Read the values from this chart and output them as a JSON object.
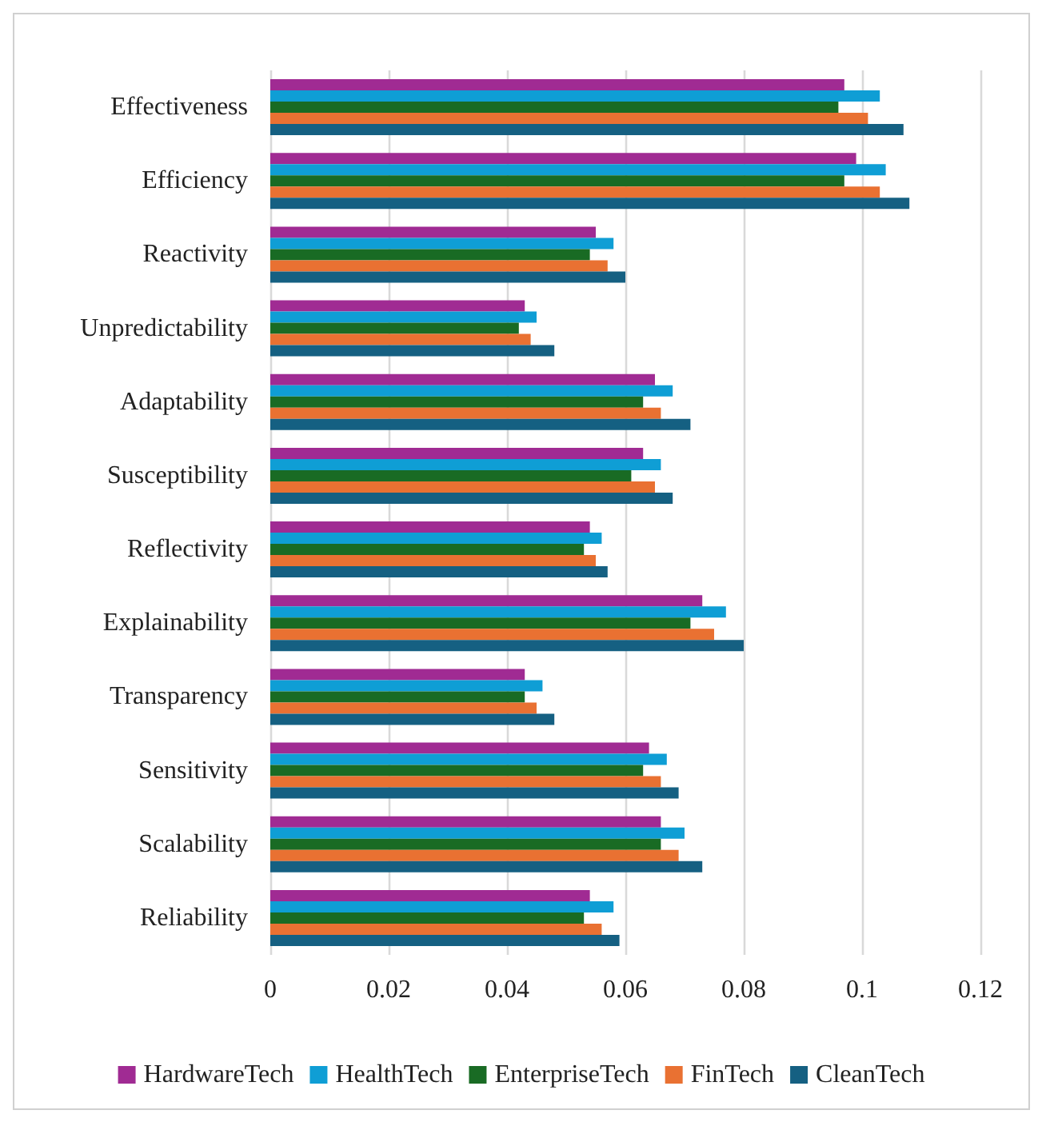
{
  "chart_data": {
    "type": "bar",
    "orientation": "horizontal",
    "categories": [
      "Effectiveness",
      "Efficiency",
      "Reactivity",
      "Unpredictability",
      "Adaptability",
      "Susceptibility",
      "Reflectivity",
      "Explainability",
      "Transparency",
      "Sensitivity",
      "Scalability",
      "Reliability"
    ],
    "series": [
      {
        "name": "HardwareTech",
        "color": "#a02b93",
        "values": [
          0.097,
          0.099,
          0.055,
          0.043,
          0.065,
          0.063,
          0.054,
          0.073,
          0.043,
          0.064,
          0.066,
          0.054
        ]
      },
      {
        "name": "HealthTech",
        "color": "#0f9ed5",
        "values": [
          0.103,
          0.104,
          0.058,
          0.045,
          0.068,
          0.066,
          0.056,
          0.077,
          0.046,
          0.067,
          0.07,
          0.058
        ]
      },
      {
        "name": "EnterpriseTech",
        "color": "#196b24",
        "values": [
          0.096,
          0.097,
          0.054,
          0.042,
          0.063,
          0.061,
          0.053,
          0.071,
          0.043,
          0.063,
          0.066,
          0.053
        ]
      },
      {
        "name": "FinTech",
        "color": "#e97132",
        "values": [
          0.101,
          0.103,
          0.057,
          0.044,
          0.066,
          0.065,
          0.055,
          0.075,
          0.045,
          0.066,
          0.069,
          0.056
        ]
      },
      {
        "name": "CleanTech",
        "color": "#156082",
        "values": [
          0.107,
          0.108,
          0.06,
          0.048,
          0.071,
          0.068,
          0.057,
          0.08,
          0.048,
          0.069,
          0.073,
          0.059
        ]
      }
    ],
    "xlim": [
      0,
      0.12
    ],
    "xticks": [
      0,
      0.02,
      0.04,
      0.06,
      0.08,
      0.1,
      0.12
    ],
    "grid": "x",
    "legend": "bottom"
  }
}
